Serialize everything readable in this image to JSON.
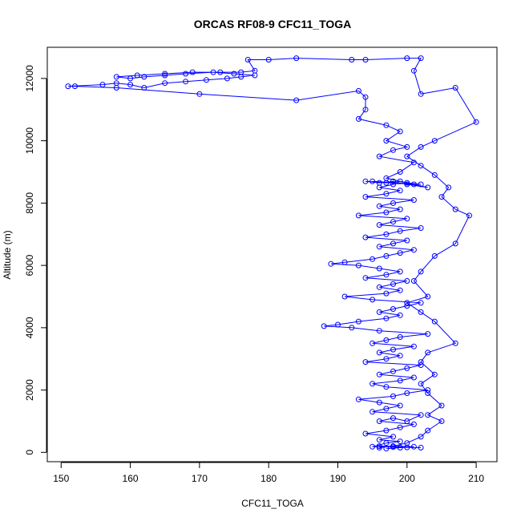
{
  "chart_data": {
    "type": "line",
    "title": "ORCAS RF08-9 CFC11_TOGA",
    "xlabel": "CFC11_TOGA",
    "ylabel": "Altitude (m)",
    "xlim": [
      148,
      213
    ],
    "ylim": [
      -300,
      13000
    ],
    "xticks": [
      150,
      160,
      170,
      180,
      190,
      200,
      210
    ],
    "yticks": [
      0,
      2000,
      4000,
      6000,
      8000,
      10000,
      12000
    ],
    "grid": false,
    "legend": "none",
    "series": [
      {
        "color": "#0000ff",
        "marker": "open-circle",
        "points": [
          [
            197,
            120
          ],
          [
            199,
            150
          ],
          [
            201,
            180
          ],
          [
            196,
            200
          ],
          [
            198,
            170
          ],
          [
            200,
            160
          ],
          [
            202,
            150
          ],
          [
            195,
            180
          ],
          [
            197,
            300
          ],
          [
            199,
            350
          ],
          [
            196,
            400
          ],
          [
            198,
            500
          ],
          [
            194,
            600
          ],
          [
            197,
            700
          ],
          [
            199,
            800
          ],
          [
            201,
            900
          ],
          [
            196,
            1000
          ],
          [
            198,
            1100
          ],
          [
            200,
            1000
          ],
          [
            202,
            1200
          ],
          [
            195,
            1300
          ],
          [
            197,
            1400
          ],
          [
            199,
            1500
          ],
          [
            196,
            1600
          ],
          [
            193,
            1700
          ],
          [
            198,
            1800
          ],
          [
            200,
            1900
          ],
          [
            203,
            2000
          ],
          [
            197,
            2100
          ],
          [
            195,
            2200
          ],
          [
            199,
            2300
          ],
          [
            201,
            2400
          ],
          [
            196,
            2500
          ],
          [
            198,
            2600
          ],
          [
            200,
            2700
          ],
          [
            202,
            2800
          ],
          [
            194,
            2900
          ],
          [
            197,
            3000
          ],
          [
            199,
            3100
          ],
          [
            196,
            3200
          ],
          [
            198,
            3300
          ],
          [
            201,
            3400
          ],
          [
            195,
            3500
          ],
          [
            197,
            3600
          ],
          [
            199,
            3700
          ],
          [
            203,
            3800
          ],
          [
            196,
            3900
          ],
          [
            192,
            4000
          ],
          [
            188,
            4050
          ],
          [
            190,
            4100
          ],
          [
            193,
            4200
          ],
          [
            197,
            4300
          ],
          [
            199,
            4400
          ],
          [
            196,
            4500
          ],
          [
            198,
            4600
          ],
          [
            200,
            4700
          ],
          [
            202,
            4800
          ],
          [
            195,
            4900
          ],
          [
            191,
            5000
          ],
          [
            197,
            5100
          ],
          [
            199,
            5200
          ],
          [
            196,
            5300
          ],
          [
            198,
            5400
          ],
          [
            200,
            5500
          ],
          [
            194,
            5600
          ],
          [
            197,
            5700
          ],
          [
            199,
            5800
          ],
          [
            196,
            5900
          ],
          [
            193,
            6000
          ],
          [
            189,
            6050
          ],
          [
            191,
            6100
          ],
          [
            195,
            6200
          ],
          [
            197,
            6300
          ],
          [
            199,
            6400
          ],
          [
            201,
            6500
          ],
          [
            196,
            6600
          ],
          [
            198,
            6700
          ],
          [
            200,
            6800
          ],
          [
            194,
            6900
          ],
          [
            197,
            7000
          ],
          [
            199,
            7100
          ],
          [
            202,
            7200
          ],
          [
            196,
            7300
          ],
          [
            198,
            7400
          ],
          [
            200,
            7500
          ],
          [
            193,
            7600
          ],
          [
            197,
            7700
          ],
          [
            199,
            7800
          ],
          [
            196,
            7900
          ],
          [
            198,
            8000
          ],
          [
            201,
            8100
          ],
          [
            194,
            8200
          ],
          [
            197,
            8300
          ],
          [
            199,
            8400
          ],
          [
            196,
            8500
          ],
          [
            198,
            8600
          ],
          [
            200,
            8650
          ],
          [
            202,
            8600
          ],
          [
            195,
            8700
          ],
          [
            197,
            8650
          ],
          [
            199,
            8700
          ],
          [
            201,
            8600
          ],
          [
            194,
            8700
          ],
          [
            196,
            8650
          ],
          [
            198,
            8700
          ],
          [
            200,
            8600
          ],
          [
            203,
            8500
          ],
          [
            197,
            8800
          ],
          [
            199,
            9000
          ],
          [
            201,
            9300
          ],
          [
            196,
            9500
          ],
          [
            198,
            9700
          ],
          [
            200,
            9800
          ],
          [
            197,
            10000
          ],
          [
            199,
            10300
          ],
          [
            197,
            10500
          ],
          [
            193,
            10700
          ],
          [
            194,
            11000
          ],
          [
            194,
            11400
          ],
          [
            193,
            11600
          ],
          [
            184,
            11300
          ],
          [
            170,
            11500
          ],
          [
            158,
            11700
          ],
          [
            152,
            11750
          ],
          [
            151,
            11750
          ],
          [
            156,
            11800
          ],
          [
            158,
            11850
          ],
          [
            160,
            11800
          ],
          [
            162,
            11700
          ],
          [
            165,
            11850
          ],
          [
            168,
            11900
          ],
          [
            171,
            11950
          ],
          [
            174,
            12000
          ],
          [
            176,
            12050
          ],
          [
            178,
            12100
          ],
          [
            175,
            12150
          ],
          [
            172,
            12200
          ],
          [
            168,
            12150
          ],
          [
            165,
            12100
          ],
          [
            162,
            12050
          ],
          [
            160,
            12000
          ],
          [
            158,
            12050
          ],
          [
            161,
            12100
          ],
          [
            165,
            12150
          ],
          [
            169,
            12200
          ],
          [
            173,
            12200
          ],
          [
            176,
            12200
          ],
          [
            178,
            12250
          ],
          [
            177,
            12600
          ],
          [
            180,
            12600
          ],
          [
            184,
            12650
          ],
          [
            192,
            12600
          ],
          [
            194,
            12600
          ],
          [
            200,
            12650
          ],
          [
            202,
            12650
          ],
          [
            201,
            12250
          ],
          [
            202,
            11500
          ],
          [
            207,
            11700
          ],
          [
            210,
            10600
          ],
          [
            204,
            10000
          ],
          [
            202,
            9800
          ],
          [
            200,
            9500
          ],
          [
            202,
            9200
          ],
          [
            204,
            8900
          ],
          [
            206,
            8500
          ],
          [
            205,
            8200
          ],
          [
            207,
            7800
          ],
          [
            209,
            7600
          ],
          [
            207,
            6700
          ],
          [
            204,
            6300
          ],
          [
            202,
            5800
          ],
          [
            201,
            5500
          ],
          [
            203,
            5000
          ],
          [
            200,
            4800
          ],
          [
            202,
            4500
          ],
          [
            204,
            4200
          ],
          [
            207,
            3500
          ],
          [
            203,
            3200
          ],
          [
            202,
            2900
          ],
          [
            204,
            2500
          ],
          [
            202,
            2200
          ],
          [
            203,
            1900
          ],
          [
            205,
            1500
          ],
          [
            203,
            1200
          ],
          [
            205,
            1000
          ],
          [
            203,
            700
          ],
          [
            202,
            500
          ],
          [
            200,
            300
          ],
          [
            198,
            200
          ],
          [
            196,
            150
          ]
        ]
      }
    ]
  }
}
